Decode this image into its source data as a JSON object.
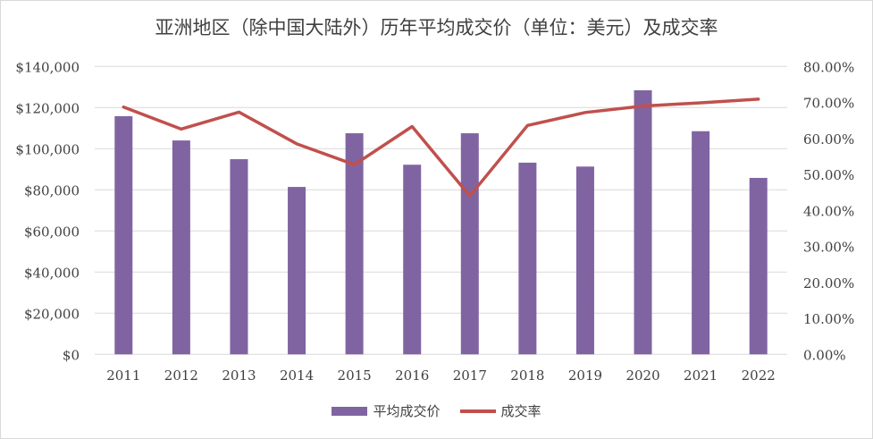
{
  "chart_data": {
    "type": "bar+line",
    "title": "亚洲地区（除中国大陆外）历年平均成交价（单位：美元）及成交率",
    "categories": [
      "2011",
      "2012",
      "2013",
      "2014",
      "2015",
      "2016",
      "2017",
      "2018",
      "2019",
      "2020",
      "2021",
      "2022"
    ],
    "series": [
      {
        "name": "平均成交价",
        "type": "bar",
        "axis": "left",
        "color": "#8064a2",
        "values": [
          115800,
          104000,
          94900,
          81400,
          107500,
          92200,
          107500,
          93200,
          91300,
          128400,
          108500,
          85800
        ]
      },
      {
        "name": "成交率",
        "type": "line",
        "axis": "right",
        "color": "#c0504d",
        "values": [
          0.687,
          0.626,
          0.673,
          0.585,
          0.527,
          0.633,
          0.44,
          0.636,
          0.672,
          0.69,
          0.699,
          0.709
        ]
      }
    ],
    "left_axis": {
      "ylim": [
        0,
        140000
      ],
      "ticks": [
        "$0",
        "$20,000",
        "$40,000",
        "$60,000",
        "$80,000",
        "$100,000",
        "$120,000",
        "$140,000"
      ]
    },
    "right_axis": {
      "ylim": [
        0,
        0.8
      ],
      "ticks": [
        "0.00%",
        "10.00%",
        "20.00%",
        "30.00%",
        "40.00%",
        "50.00%",
        "60.00%",
        "70.00%",
        "80.00%"
      ]
    },
    "grid": true,
    "legend_position": "bottom"
  }
}
